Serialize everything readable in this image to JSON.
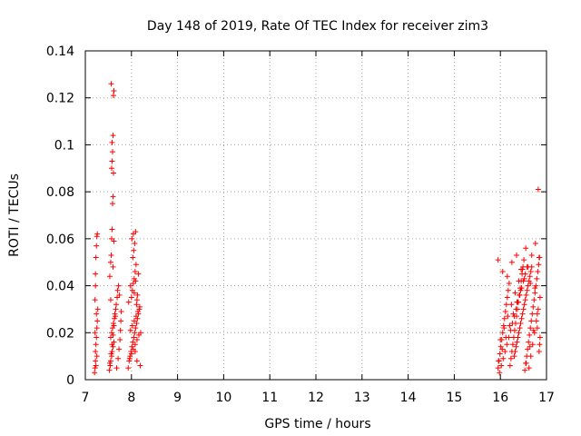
{
  "chart_data": {
    "type": "scatter",
    "title": "Day 148 of 2019, Rate Of TEC Index for receiver zim3",
    "xlabel": "GPS time / hours",
    "ylabel": "ROTI / TECUs",
    "xlim": [
      7,
      17
    ],
    "ylim": [
      0,
      0.14
    ],
    "xticks": [
      7,
      8,
      9,
      10,
      11,
      12,
      13,
      14,
      15,
      16,
      17
    ],
    "xtick_labels": [
      "7",
      "8",
      "9",
      "10",
      "11",
      "12",
      "13",
      "14",
      "15",
      "16",
      "17"
    ],
    "yticks": [
      0,
      0.02,
      0.04,
      0.06,
      0.08,
      0.1,
      0.12,
      0.14
    ],
    "ytick_labels": [
      "0",
      "0.02",
      "0.04",
      "0.06",
      "0.08",
      "0.1",
      "0.12",
      "0.14"
    ],
    "grid": true,
    "marker": "+",
    "color": "#ff0000",
    "x": [
      7.2,
      7.21,
      7.22,
      7.22,
      7.23,
      7.24,
      7.25,
      7.26,
      7.27,
      7.21,
      7.22,
      7.24,
      7.25,
      7.26,
      7.23,
      7.22,
      7.24,
      7.25,
      7.21,
      7.23,
      7.52,
      7.54,
      7.55,
      7.57,
      7.58,
      7.6,
      7.62,
      7.55,
      7.57,
      7.59,
      7.61,
      7.63,
      7.64,
      7.66,
      7.53,
      7.56,
      7.58,
      7.6,
      7.62,
      7.65,
      7.67,
      7.69,
      7.7,
      7.72,
      7.74,
      7.68,
      7.71,
      7.73,
      7.75,
      7.76,
      7.77,
      7.78,
      7.55,
      7.56,
      7.57,
      7.58,
      7.59,
      7.6,
      7.61,
      7.57,
      7.58,
      7.59,
      7.58,
      7.6,
      7.61,
      7.62,
      7.56,
      7.6,
      7.62,
      7.53,
      7.55,
      7.93,
      7.95,
      7.97,
      7.99,
      8.01,
      8.03,
      8.05,
      8.07,
      8.09,
      8.11,
      8.13,
      8.15,
      8.17,
      8.19,
      7.96,
      8.0,
      8.04,
      8.08,
      8.12,
      8.16,
      7.98,
      8.02,
      8.06,
      8.1,
      8.14,
      8.18,
      8.2,
      7.94,
      8.08,
      8.12,
      8.0,
      8.02,
      8.04,
      8.06,
      8.08,
      8.1,
      8.03,
      8.05,
      8.07,
      8.01,
      8.04,
      8.09,
      7.98,
      8.11,
      8.13,
      8.15,
      8.06,
      8.09,
      8.12,
      15.95,
      15.97,
      15.99,
      16.01,
      16.03,
      16.05,
      16.07,
      16.09,
      16.11,
      16.13,
      16.15,
      16.17,
      16.19,
      16.21,
      16.23,
      16.25,
      16.27,
      16.29,
      16.31,
      16.33,
      16.35,
      16.37,
      16.39,
      16.41,
      16.43,
      16.45,
      16.47,
      16.49,
      16.51,
      16.53,
      16.55,
      16.57,
      16.59,
      16.61,
      16.63,
      16.65,
      16.67,
      16.69,
      16.71,
      16.73,
      16.75,
      16.77,
      16.79,
      16.81,
      16.83,
      16.85,
      15.98,
      16.02,
      16.06,
      16.1,
      16.14,
      16.18,
      16.22,
      16.26,
      16.3,
      16.34,
      16.38,
      16.42,
      16.46,
      16.5,
      16.54,
      16.58,
      16.62,
      16.66,
      16.7,
      16.74,
      16.78,
      16.82,
      15.96,
      16.04,
      16.12,
      16.2,
      16.28,
      16.36,
      16.44,
      16.52,
      16.6,
      16.68,
      16.76,
      16.84,
      16.0,
      16.08,
      16.16,
      16.24,
      16.32,
      16.4,
      16.48,
      16.56,
      16.64,
      16.72,
      16.8,
      16.86,
      16.3,
      16.32,
      16.34,
      16.36,
      16.38,
      16.4,
      16.42,
      16.44,
      16.46,
      16.48,
      16.5,
      16.52,
      16.54,
      16.56,
      16.58,
      16.6,
      16.62,
      16.64,
      16.66,
      16.68,
      15.95,
      16.05,
      16.15,
      16.25,
      16.35,
      16.45,
      16.55,
      16.65,
      16.75,
      16.85,
      16.82,
      16.84,
      16.8,
      16.86
    ],
    "y": [
      0.003,
      0.005,
      0.008,
      0.012,
      0.015,
      0.018,
      0.022,
      0.025,
      0.03,
      0.034,
      0.045,
      0.057,
      0.061,
      0.062,
      0.052,
      0.04,
      0.028,
      0.01,
      0.02,
      0.006,
      0.004,
      0.006,
      0.008,
      0.01,
      0.012,
      0.014,
      0.016,
      0.018,
      0.02,
      0.022,
      0.024,
      0.026,
      0.028,
      0.03,
      0.007,
      0.011,
      0.015,
      0.019,
      0.023,
      0.027,
      0.032,
      0.035,
      0.038,
      0.04,
      0.036,
      0.005,
      0.009,
      0.013,
      0.017,
      0.021,
      0.025,
      0.029,
      0.05,
      0.053,
      0.06,
      0.064,
      0.075,
      0.078,
      0.088,
      0.09,
      0.093,
      0.097,
      0.101,
      0.104,
      0.121,
      0.123,
      0.126,
      0.048,
      0.059,
      0.044,
      0.034,
      0.005,
      0.008,
      0.01,
      0.012,
      0.014,
      0.016,
      0.018,
      0.02,
      0.022,
      0.024,
      0.026,
      0.028,
      0.03,
      0.006,
      0.009,
      0.011,
      0.013,
      0.015,
      0.017,
      0.019,
      0.021,
      0.023,
      0.025,
      0.027,
      0.029,
      0.031,
      0.02,
      0.033,
      0.012,
      0.008,
      0.035,
      0.038,
      0.041,
      0.043,
      0.046,
      0.049,
      0.052,
      0.055,
      0.058,
      0.06,
      0.062,
      0.063,
      0.04,
      0.032,
      0.036,
      0.045,
      0.037,
      0.042,
      0.034,
      0.005,
      0.008,
      0.011,
      0.014,
      0.017,
      0.02,
      0.023,
      0.026,
      0.029,
      0.032,
      0.035,
      0.038,
      0.041,
      0.006,
      0.009,
      0.012,
      0.015,
      0.018,
      0.021,
      0.024,
      0.027,
      0.03,
      0.033,
      0.036,
      0.039,
      0.042,
      0.045,
      0.048,
      0.051,
      0.004,
      0.007,
      0.01,
      0.013,
      0.016,
      0.019,
      0.022,
      0.025,
      0.028,
      0.031,
      0.034,
      0.037,
      0.04,
      0.043,
      0.046,
      0.049,
      0.052,
      0.003,
      0.006,
      0.009,
      0.012,
      0.015,
      0.018,
      0.021,
      0.024,
      0.027,
      0.03,
      0.033,
      0.036,
      0.039,
      0.042,
      0.045,
      0.048,
      0.005,
      0.01,
      0.015,
      0.02,
      0.025,
      0.03,
      0.008,
      0.013,
      0.018,
      0.023,
      0.028,
      0.033,
      0.038,
      0.043,
      0.048,
      0.053,
      0.058,
      0.012,
      0.017,
      0.022,
      0.027,
      0.032,
      0.037,
      0.042,
      0.047,
      0.007,
      0.014,
      0.021,
      0.028,
      0.035,
      0.01,
      0.012,
      0.014,
      0.016,
      0.018,
      0.02,
      0.022,
      0.024,
      0.026,
      0.028,
      0.03,
      0.032,
      0.034,
      0.036,
      0.038,
      0.04,
      0.042,
      0.044,
      0.046,
      0.048,
      0.051,
      0.046,
      0.044,
      0.05,
      0.053,
      0.047,
      0.056,
      0.041,
      0.039,
      0.015,
      0.081,
      0.052,
      0.022,
      0.018
    ]
  }
}
